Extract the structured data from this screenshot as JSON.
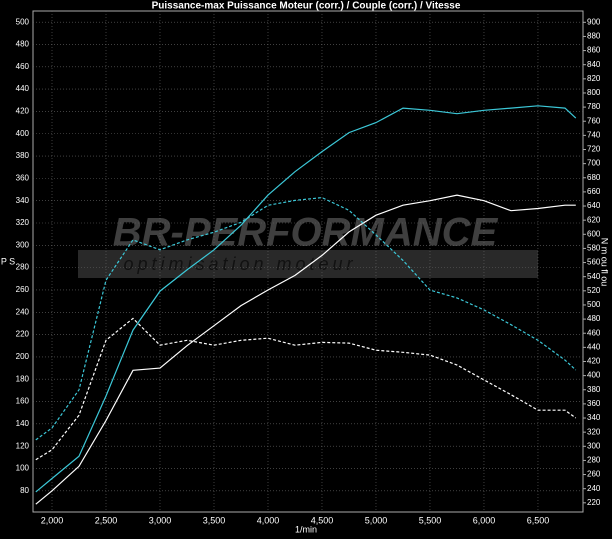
{
  "chart_data": {
    "type": "line",
    "title": "Puissance-max Puissance Moteur (corr.) / Couple (corr.) / Vitesse",
    "ylabel": "P S",
    "y2label": "N m ou fl ou",
    "xlabel": "1/min",
    "watermark": "BR-PERFORMANCE",
    "watermark_subtitle": "optimisation moteur",
    "grid": true,
    "xlim": [
      1824,
      6917
    ],
    "xticks": [
      {
        "value": 2000,
        "label": "2,000"
      },
      {
        "value": 2500,
        "label": "2,500"
      },
      {
        "value": 3000,
        "label": "3,000"
      },
      {
        "value": 3500,
        "label": "3,500"
      },
      {
        "value": 4000,
        "label": "4,000"
      },
      {
        "value": 4500,
        "label": "4,500"
      },
      {
        "value": 5000,
        "label": "5,000"
      },
      {
        "value": 5500,
        "label": "5,500"
      },
      {
        "value": 6000,
        "label": "6,000"
      },
      {
        "value": 6500,
        "label": "6,500"
      }
    ],
    "ylim": [
      61,
      510
    ],
    "yticks": [
      80,
      100,
      120,
      140,
      160,
      180,
      200,
      220,
      240,
      260,
      280,
      300,
      320,
      340,
      360,
      380,
      400,
      420,
      440,
      460,
      480,
      500
    ],
    "y2lim": [
      207,
      916
    ],
    "y2ticks": [
      220,
      240,
      260,
      280,
      300,
      320,
      340,
      360,
      380,
      400,
      420,
      440,
      460,
      480,
      500,
      520,
      540,
      560,
      580,
      600,
      620,
      640,
      660,
      680,
      700,
      720,
      740,
      760,
      780,
      800,
      820,
      840,
      860,
      880,
      900
    ],
    "x": [
      1850,
      2000,
      2250,
      2500,
      2750,
      3000,
      3250,
      3500,
      3750,
      4000,
      4250,
      4500,
      4750,
      5000,
      5250,
      5500,
      5750,
      6000,
      6250,
      6500,
      6750,
      6850
    ],
    "series": [
      {
        "color": "#3cc8d8",
        "dash": false,
        "values": [
          79,
          91,
          111,
          165,
          224,
          259,
          278,
          296,
          318,
          345,
          366,
          384,
          401,
          410,
          423,
          421,
          418,
          421,
          423,
          425,
          423,
          414
        ]
      },
      {
        "color": "#ffffff",
        "dash": false,
        "values": [
          68,
          80,
          102,
          143,
          188,
          190,
          210,
          228,
          246,
          260,
          273,
          291,
          312,
          327,
          336,
          340,
          345,
          340,
          331,
          333,
          336,
          336
        ]
      },
      {
        "color": "#3cc8d8",
        "dash": true,
        "axis": "y2",
        "values": [
          309,
          326,
          380,
          535,
          592,
          578,
          592,
          603,
          617,
          641,
          648,
          652,
          634,
          599,
          563,
          521,
          510,
          493,
          472,
          450,
          422,
          408
        ]
      },
      {
        "color": "#ffffff",
        "dash": true,
        "axis": "y2",
        "values": [
          281,
          295,
          344,
          450,
          481,
          443,
          450,
          443,
          450,
          453,
          443,
          447,
          446,
          436,
          433,
          429,
          415,
          394,
          373,
          351,
          351,
          340
        ]
      }
    ]
  }
}
